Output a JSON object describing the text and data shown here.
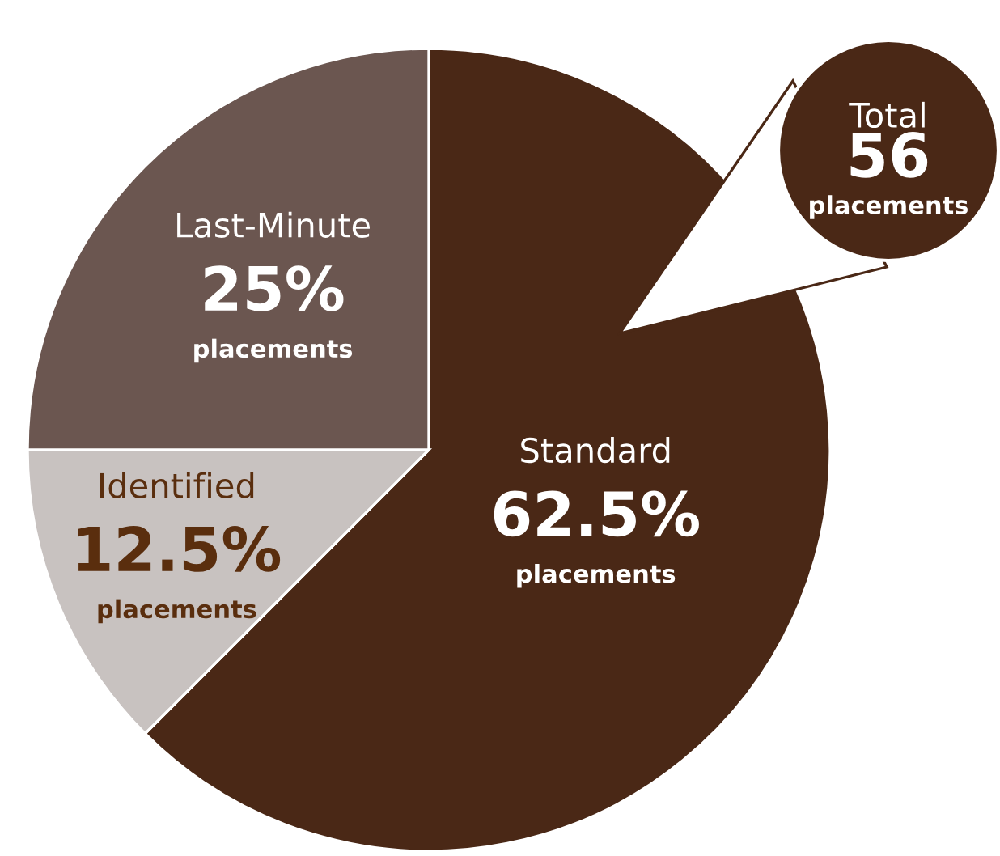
{
  "chart_data": {
    "type": "pie",
    "categories": [
      "Standard",
      "Identified",
      "Last-Minute"
    ],
    "values": [
      62.5,
      12.5,
      25
    ],
    "colors": [
      "#4a2816",
      "#c8c2c0",
      "#6b5650"
    ],
    "value_labels": [
      "62.5%",
      "12.5%",
      "25%"
    ],
    "annotations": [
      "Total",
      "56",
      "placements",
      {
        "text": "placements",
        "x": "Standard"
      },
      {
        "text": "placements",
        "x": "Identified"
      },
      {
        "text": "placements",
        "x": "Last-Minute"
      }
    ],
    "legend": false
  }
}
